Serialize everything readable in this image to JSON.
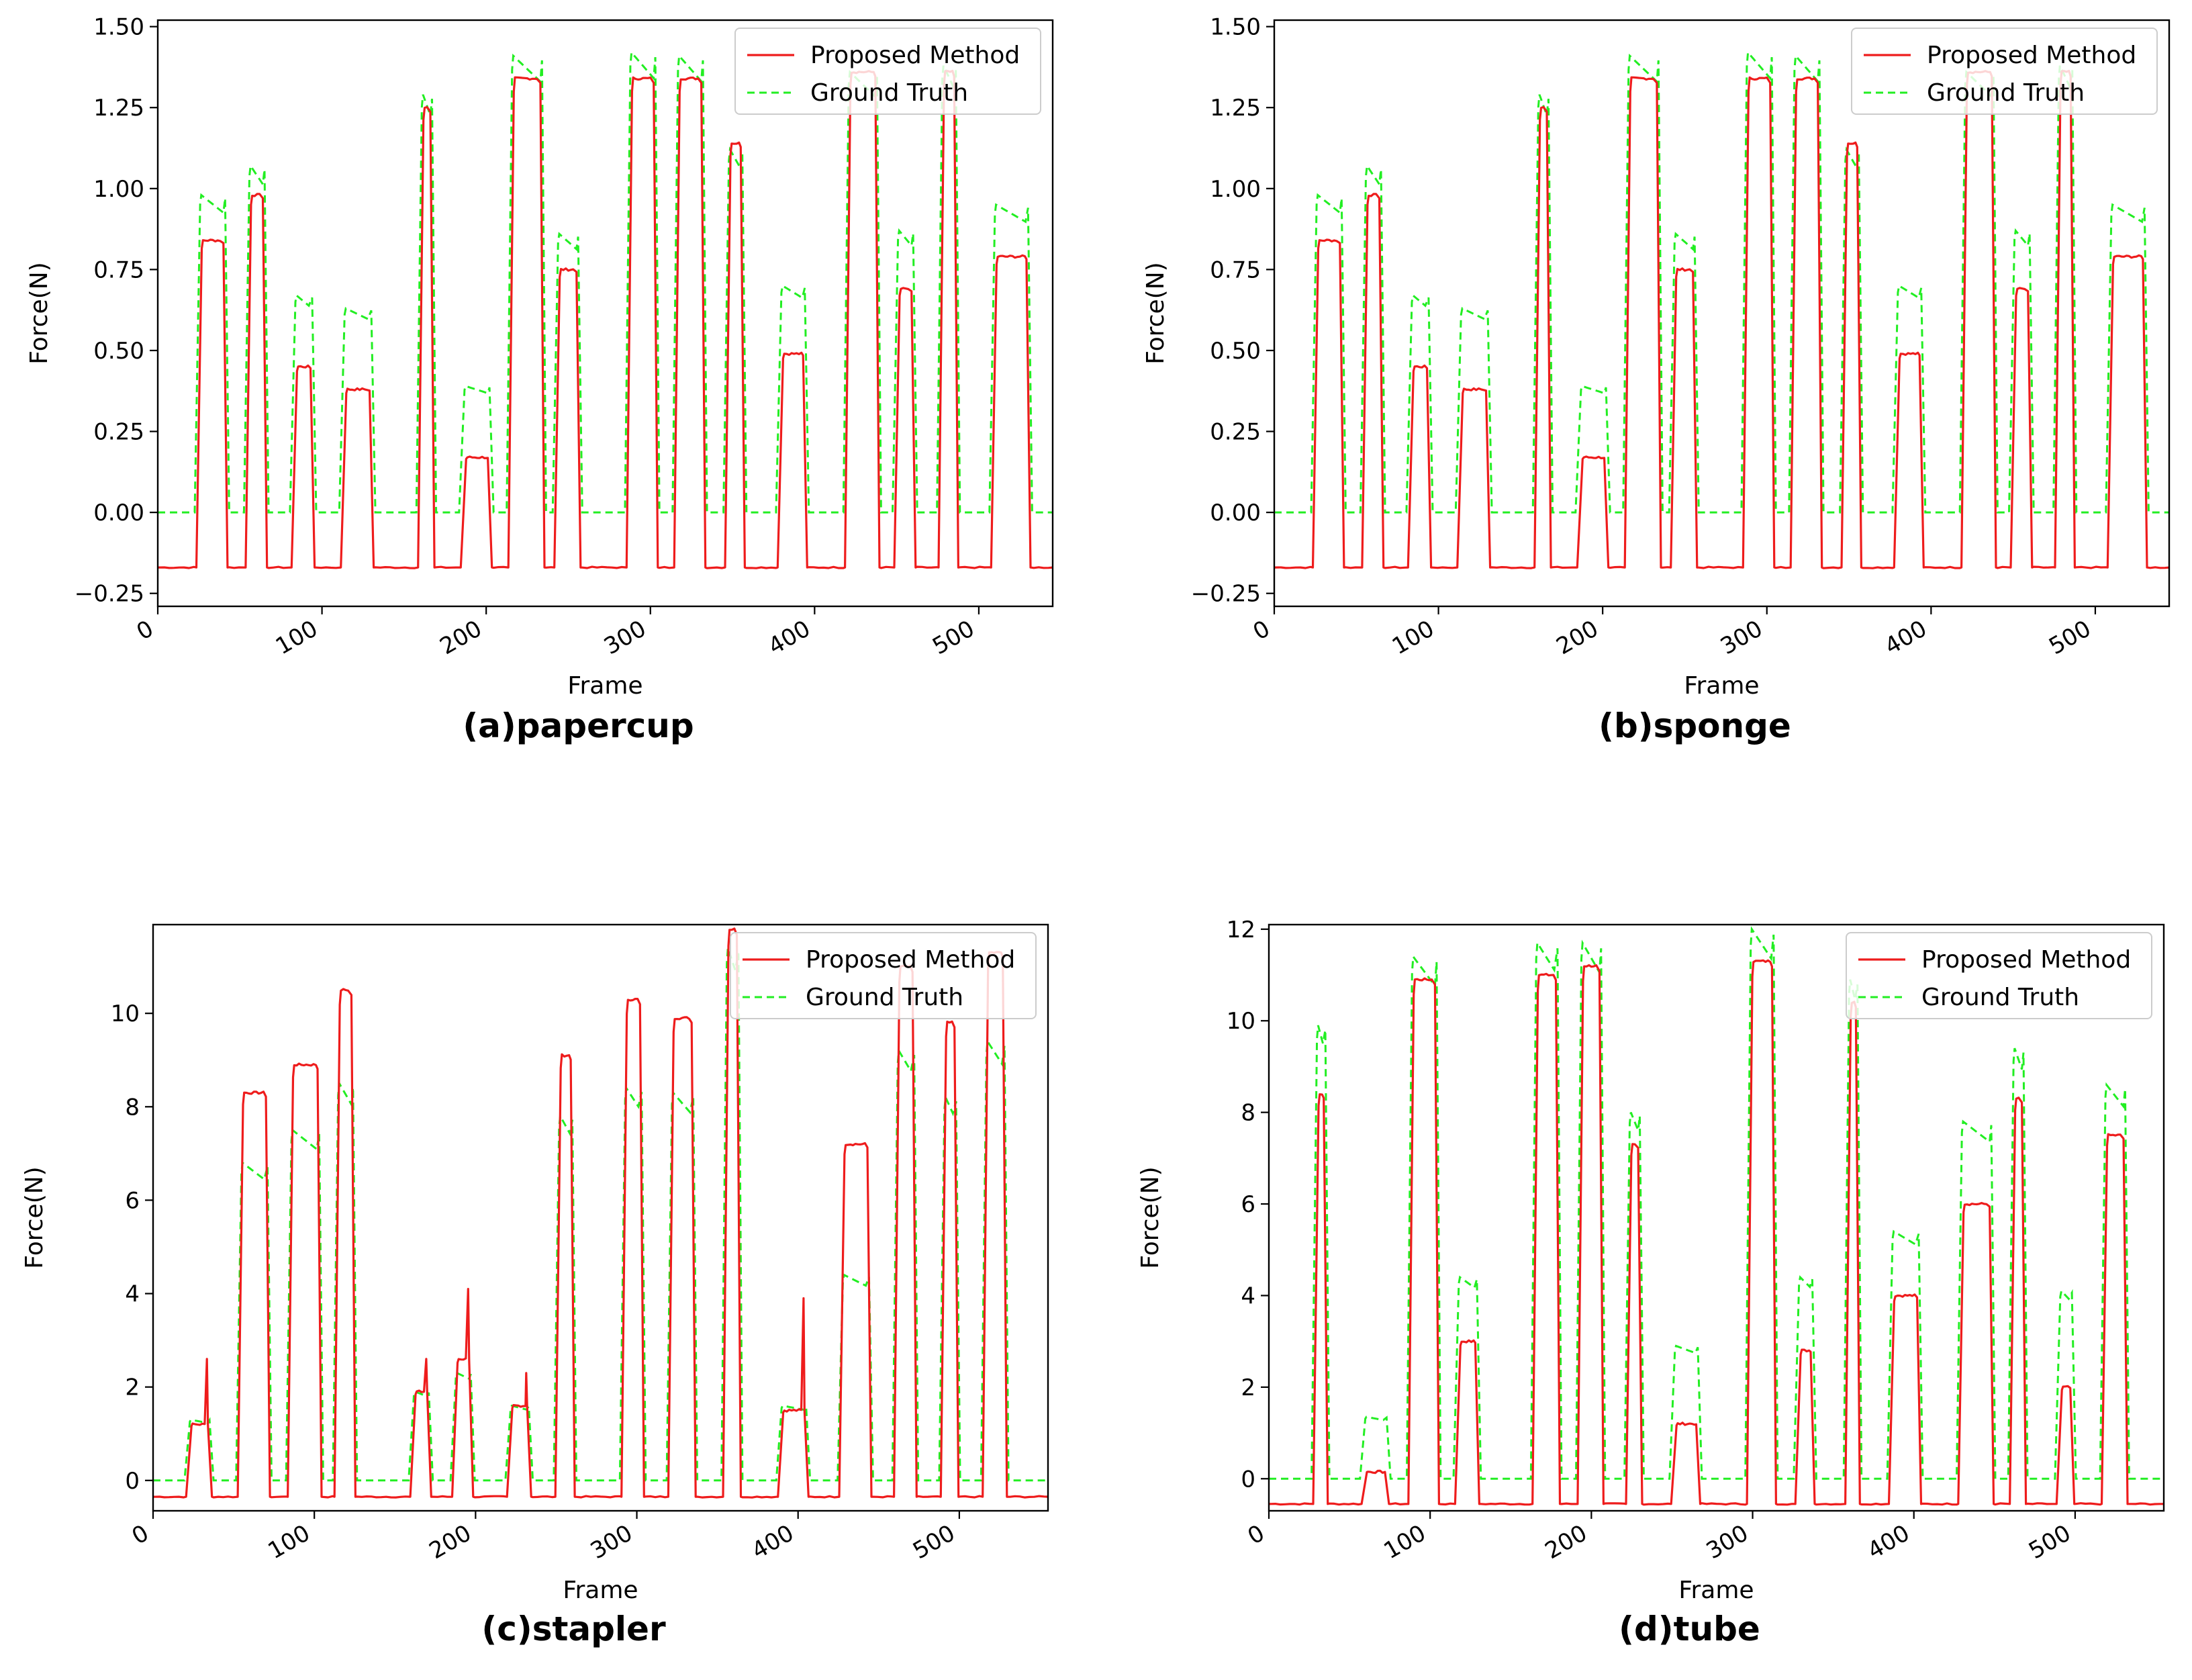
{
  "colors": {
    "proposed": "#ee1c1c",
    "ground_truth": "#22ee22",
    "axis": "#000000"
  },
  "chart_data": [
    {
      "type": "line",
      "caption": "(a)papercup",
      "xlabel": "Frame",
      "ylabel": "Force(N)",
      "xlim": [
        0,
        545
      ],
      "ylim": [
        -0.29,
        1.52
      ],
      "xticks": [
        0,
        100,
        200,
        300,
        400,
        500
      ],
      "yticks": [
        -0.25,
        0.0,
        0.25,
        0.5,
        0.75,
        1.0,
        1.25,
        1.5
      ],
      "ytick_labels": [
        "−0.25",
        "0.00",
        "0.25",
        "0.50",
        "0.75",
        "1.00",
        "1.25",
        "1.50"
      ],
      "legend": [
        "Proposed Method",
        "Ground Truth"
      ],
      "legend_position": "top-right",
      "baseline_proposed": -0.17,
      "baseline_truth": 0.0,
      "pulses": [
        {
          "start": 26,
          "end": 40,
          "proposed": 0.84,
          "truth": 0.98
        },
        {
          "start": 56,
          "end": 64,
          "proposed": 0.98,
          "truth": 1.07
        },
        {
          "start": 84,
          "end": 93,
          "proposed": 0.45,
          "truth": 0.67
        },
        {
          "start": 114,
          "end": 129,
          "proposed": 0.38,
          "truth": 0.63
        },
        {
          "start": 161,
          "end": 166,
          "proposed": 1.25,
          "truth": 1.29
        },
        {
          "start": 187,
          "end": 201,
          "proposed": 0.17,
          "truth": 0.39
        },
        {
          "start": 216,
          "end": 233,
          "proposed": 1.34,
          "truth": 1.41
        },
        {
          "start": 244,
          "end": 255,
          "proposed": 0.75,
          "truth": 0.86
        },
        {
          "start": 288,
          "end": 302,
          "proposed": 1.34,
          "truth": 1.42
        },
        {
          "start": 317,
          "end": 331,
          "proposed": 1.34,
          "truth": 1.41
        },
        {
          "start": 348,
          "end": 355,
          "proposed": 1.14,
          "truth": 1.12
        },
        {
          "start": 380,
          "end": 393,
          "proposed": 0.49,
          "truth": 0.7
        },
        {
          "start": 421,
          "end": 437,
          "proposed": 1.36,
          "truth": 1.36
        },
        {
          "start": 451,
          "end": 459,
          "proposed": 0.69,
          "truth": 0.87
        },
        {
          "start": 478,
          "end": 485,
          "proposed": 1.36,
          "truth": 1.38
        },
        {
          "start": 510,
          "end": 529,
          "proposed": 0.79,
          "truth": 0.95
        }
      ]
    },
    {
      "type": "line",
      "caption": "(b)sponge",
      "xlabel": "Frame",
      "ylabel": "Force(N)",
      "xlim": [
        0,
        545
      ],
      "ylim": [
        -0.29,
        1.52
      ],
      "xticks": [
        0,
        100,
        200,
        300,
        400,
        500
      ],
      "yticks": [
        -0.25,
        0.0,
        0.25,
        0.5,
        0.75,
        1.0,
        1.25,
        1.5
      ],
      "ytick_labels": [
        "−0.25",
        "0.00",
        "0.25",
        "0.50",
        "0.75",
        "1.00",
        "1.25",
        "1.50"
      ],
      "legend": [
        "Proposed Method",
        "Ground Truth"
      ],
      "legend_position": "top-right",
      "baseline_proposed": -0.17,
      "baseline_truth": 0.0,
      "pulses": [
        {
          "start": 26,
          "end": 40,
          "proposed": 0.84,
          "truth": 0.98
        },
        {
          "start": 56,
          "end": 64,
          "proposed": 0.98,
          "truth": 1.07
        },
        {
          "start": 84,
          "end": 93,
          "proposed": 0.45,
          "truth": 0.67
        },
        {
          "start": 114,
          "end": 129,
          "proposed": 0.38,
          "truth": 0.63
        },
        {
          "start": 161,
          "end": 166,
          "proposed": 1.25,
          "truth": 1.29
        },
        {
          "start": 187,
          "end": 201,
          "proposed": 0.17,
          "truth": 0.39
        },
        {
          "start": 216,
          "end": 233,
          "proposed": 1.34,
          "truth": 1.41
        },
        {
          "start": 244,
          "end": 255,
          "proposed": 0.75,
          "truth": 0.86
        },
        {
          "start": 288,
          "end": 302,
          "proposed": 1.34,
          "truth": 1.42
        },
        {
          "start": 317,
          "end": 331,
          "proposed": 1.34,
          "truth": 1.41
        },
        {
          "start": 348,
          "end": 355,
          "proposed": 1.14,
          "truth": 1.12
        },
        {
          "start": 380,
          "end": 393,
          "proposed": 0.49,
          "truth": 0.7
        },
        {
          "start": 421,
          "end": 437,
          "proposed": 1.36,
          "truth": 1.36
        },
        {
          "start": 451,
          "end": 459,
          "proposed": 0.69,
          "truth": 0.87
        },
        {
          "start": 478,
          "end": 485,
          "proposed": 1.36,
          "truth": 1.38
        },
        {
          "start": 510,
          "end": 529,
          "proposed": 0.79,
          "truth": 0.95
        }
      ]
    },
    {
      "type": "line",
      "caption": "(c)stapler",
      "xlabel": "Frame",
      "ylabel": "Force(N)",
      "xlim": [
        0,
        555
      ],
      "ylim": [
        -0.65,
        11.9
      ],
      "xticks": [
        0,
        100,
        200,
        300,
        400,
        500
      ],
      "yticks": [
        0,
        2,
        4,
        6,
        8,
        10
      ],
      "ytick_labels": [
        "0",
        "2",
        "4",
        "6",
        "8",
        "10"
      ],
      "legend": [
        "Proposed Method",
        "Ground Truth"
      ],
      "legend_position": "top-right",
      "baseline_proposed": -0.35,
      "baseline_truth": 0.0,
      "pulses": [
        {
          "start": 23,
          "end": 34,
          "proposed": 1.2,
          "truth": 1.3,
          "spike": 2.6
        },
        {
          "start": 55,
          "end": 70,
          "proposed": 8.3,
          "truth": 6.8
        },
        {
          "start": 86,
          "end": 102,
          "proposed": 8.9,
          "truth": 7.5
        },
        {
          "start": 115,
          "end": 123,
          "proposed": 10.5,
          "truth": 8.5
        },
        {
          "start": 162,
          "end": 170,
          "proposed": 1.9,
          "truth": 1.9,
          "spike": 2.6
        },
        {
          "start": 188,
          "end": 196,
          "proposed": 2.6,
          "truth": 2.3,
          "spike": 4.1
        },
        {
          "start": 222,
          "end": 232,
          "proposed": 1.6,
          "truth": 1.6,
          "spike": 2.3
        },
        {
          "start": 252,
          "end": 259,
          "proposed": 9.1,
          "truth": 7.8
        },
        {
          "start": 293,
          "end": 302,
          "proposed": 10.3,
          "truth": 8.4
        },
        {
          "start": 322,
          "end": 334,
          "proposed": 9.9,
          "truth": 8.3
        },
        {
          "start": 356,
          "end": 362,
          "proposed": 11.8,
          "truth": 11.4
        },
        {
          "start": 390,
          "end": 404,
          "proposed": 1.5,
          "truth": 1.6,
          "spike": 3.9
        },
        {
          "start": 428,
          "end": 443,
          "proposed": 7.2,
          "truth": 4.4
        },
        {
          "start": 462,
          "end": 471,
          "proposed": 11.0,
          "truth": 9.2
        },
        {
          "start": 491,
          "end": 497,
          "proposed": 9.8,
          "truth": 8.2
        },
        {
          "start": 517,
          "end": 527,
          "proposed": 11.3,
          "truth": 9.4
        }
      ]
    },
    {
      "type": "line",
      "caption": "(d)tube",
      "xlabel": "Frame",
      "ylabel": "Force(N)",
      "xlim": [
        0,
        555
      ],
      "ylim": [
        -0.7,
        12.1
      ],
      "xticks": [
        0,
        100,
        200,
        300,
        400,
        500
      ],
      "yticks": [
        0,
        2,
        4,
        6,
        8,
        10,
        12
      ],
      "ytick_labels": [
        "0",
        "2",
        "4",
        "6",
        "8",
        "10",
        "12"
      ],
      "legend": [
        "Proposed Method",
        "Ground Truth"
      ],
      "legend_position": "top-right",
      "baseline_proposed": -0.55,
      "baseline_truth": 0.0,
      "pulses": [
        {
          "start": 30,
          "end": 34,
          "proposed": 8.4,
          "truth": 9.9
        },
        {
          "start": 60,
          "end": 72,
          "proposed": 0.15,
          "truth": 1.35
        },
        {
          "start": 89,
          "end": 103,
          "proposed": 10.9,
          "truth": 11.4
        },
        {
          "start": 118,
          "end": 128,
          "proposed": 3.0,
          "truth": 4.4
        },
        {
          "start": 166,
          "end": 178,
          "proposed": 11.0,
          "truth": 11.7
        },
        {
          "start": 194,
          "end": 205,
          "proposed": 11.2,
          "truth": 11.7
        },
        {
          "start": 224,
          "end": 229,
          "proposed": 7.3,
          "truth": 8.0
        },
        {
          "start": 252,
          "end": 265,
          "proposed": 1.2,
          "truth": 2.9
        },
        {
          "start": 299,
          "end": 312,
          "proposed": 11.3,
          "truth": 12.0
        },
        {
          "start": 329,
          "end": 336,
          "proposed": 2.8,
          "truth": 4.4
        },
        {
          "start": 360,
          "end": 364,
          "proposed": 10.4,
          "truth": 10.9
        },
        {
          "start": 387,
          "end": 402,
          "proposed": 4.0,
          "truth": 5.4
        },
        {
          "start": 430,
          "end": 447,
          "proposed": 6.0,
          "truth": 7.8
        },
        {
          "start": 462,
          "end": 467,
          "proposed": 8.3,
          "truth": 9.4
        },
        {
          "start": 491,
          "end": 497,
          "proposed": 2.0,
          "truth": 4.1
        },
        {
          "start": 519,
          "end": 530,
          "proposed": 7.5,
          "truth": 8.6
        }
      ]
    }
  ]
}
